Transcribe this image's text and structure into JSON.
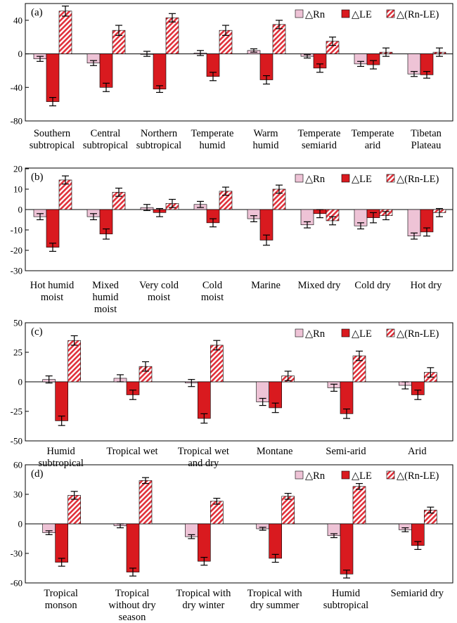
{
  "legend_labels": [
    "△Rn",
    "△LE",
    "△(Rn-LE)"
  ],
  "colors": {
    "rn": "#eec3d6",
    "le": "#d91a1f",
    "stripe_fg": "#e0303a",
    "stripe_bg": "#ffffff"
  },
  "chart_data": [
    {
      "type": "bar",
      "panel": "(a)",
      "categories": [
        [
          "Southern",
          "subtropical"
        ],
        [
          "Central",
          "subtropical"
        ],
        [
          "Northern",
          "subtropical"
        ],
        [
          "Temperate",
          "humid"
        ],
        [
          "Warm",
          "humid"
        ],
        [
          "Temperate",
          "semiarid"
        ],
        [
          "Temperate",
          "arid"
        ],
        [
          "Tibetan",
          "Plateau"
        ]
      ],
      "ylim": [
        -80,
        60
      ],
      "yticks": [
        -80,
        -40,
        0,
        40
      ],
      "legend_position": "top-right",
      "series": [
        {
          "name": "△Rn",
          "values": [
            -6,
            -11,
            0,
            1,
            4,
            -3,
            -12,
            -24
          ],
          "errors": [
            3,
            3,
            3,
            3,
            2,
            2,
            3,
            3
          ]
        },
        {
          "name": "△LE",
          "values": [
            -57,
            -40,
            -42,
            -27,
            -31,
            -17,
            -13,
            -25
          ],
          "errors": [
            5,
            5,
            4,
            5,
            5,
            5,
            5,
            4
          ]
        },
        {
          "name": "△(Rn-LE)",
          "values": [
            51,
            28,
            43,
            28,
            35,
            15,
            2,
            2
          ],
          "errors": [
            6,
            6,
            5,
            6,
            5,
            5,
            5,
            5
          ]
        }
      ]
    },
    {
      "type": "bar",
      "panel": "(b)",
      "categories": [
        [
          "Hot humid",
          "moist"
        ],
        [
          "Mixed",
          "humid",
          "moist"
        ],
        [
          "Very cold",
          "moist"
        ],
        [
          "Cold",
          "moist"
        ],
        [
          "Marine"
        ],
        [
          "Mixed dry"
        ],
        [
          "Cold dry"
        ],
        [
          "Hot dry"
        ]
      ],
      "ylim": [
        -30,
        20
      ],
      "yticks": [
        -30,
        -20,
        -10,
        0,
        10,
        20
      ],
      "legend_position": "top-right",
      "series": [
        {
          "name": "△Rn",
          "values": [
            -3.5,
            -3.5,
            1,
            2.5,
            -4.5,
            -7.5,
            -8,
            -13
          ],
          "errors": [
            1.5,
            1.5,
            1.5,
            1.5,
            1.5,
            1.5,
            1.5,
            1.5
          ]
        },
        {
          "name": "△LE",
          "values": [
            -18.5,
            -12,
            -1.5,
            -6.5,
            -15,
            -2,
            -4,
            -11
          ],
          "errors": [
            2,
            2.5,
            2,
            2,
            2.5,
            2,
            2.5,
            2
          ]
        },
        {
          "name": "△(Rn-LE)",
          "values": [
            14.5,
            8.5,
            3,
            9,
            10,
            -5.5,
            -3,
            -1.5
          ],
          "errors": [
            2,
            2,
            2,
            2,
            2,
            2,
            2,
            2
          ]
        }
      ]
    },
    {
      "type": "bar",
      "panel": "(c)",
      "categories": [
        [
          "Humid",
          "subtropical"
        ],
        [
          "Tropical wet"
        ],
        [
          "Tropical wet",
          "and dry"
        ],
        [
          "Montane"
        ],
        [
          "Semi-arid"
        ],
        [
          "Arid"
        ]
      ],
      "ylim": [
        -50,
        50
      ],
      "yticks": [
        -50,
        -25,
        0,
        25,
        50
      ],
      "legend_position": "top-right",
      "series": [
        {
          "name": "△Rn",
          "values": [
            2,
            3,
            -1,
            -17,
            -5,
            -3
          ],
          "errors": [
            3,
            3,
            3,
            3,
            3,
            3
          ]
        },
        {
          "name": "△LE",
          "values": [
            -33,
            -11,
            -31,
            -22,
            -27,
            -11
          ],
          "errors": [
            4,
            4,
            4,
            4,
            4,
            4
          ]
        },
        {
          "name": "△(Rn-LE)",
          "values": [
            35,
            13,
            31,
            5,
            22,
            8
          ],
          "errors": [
            4,
            4,
            4,
            4,
            4,
            4
          ]
        }
      ]
    },
    {
      "type": "bar",
      "panel": "(d)",
      "categories": [
        [
          "Tropical",
          "monson"
        ],
        [
          "Tropical",
          "without dry",
          "season"
        ],
        [
          "Tropical with",
          "dry winter"
        ],
        [
          "Tropical with",
          "dry summer"
        ],
        [
          "Humid",
          "subtropical"
        ],
        [
          "Semiarid dry"
        ]
      ],
      "ylim": [
        -60,
        60
      ],
      "yticks": [
        -60,
        -30,
        0,
        30,
        60
      ],
      "legend_position": "top-right",
      "series": [
        {
          "name": "△Rn",
          "values": [
            -9,
            -2,
            -13,
            -5,
            -12,
            -6
          ],
          "errors": [
            2,
            2,
            2,
            1.5,
            2,
            2
          ]
        },
        {
          "name": "△LE",
          "values": [
            -39,
            -49,
            -38,
            -35,
            -51,
            -22
          ],
          "errors": [
            4,
            4,
            4,
            4,
            4,
            4
          ]
        },
        {
          "name": "△(Rn-LE)",
          "values": [
            29,
            44,
            23,
            28,
            38,
            14
          ],
          "errors": [
            4,
            3,
            3,
            3,
            3,
            3
          ]
        }
      ]
    }
  ]
}
